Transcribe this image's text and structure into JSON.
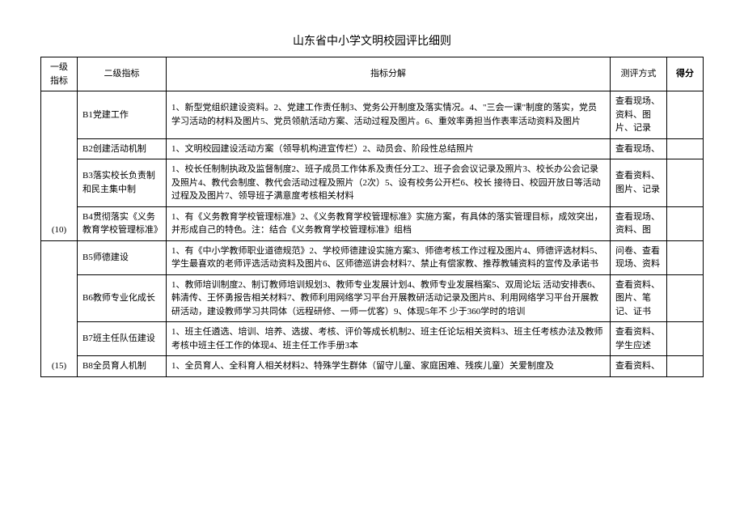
{
  "title": "山东省中小学文明校园评比细则",
  "headers": {
    "col1": "一级 指标",
    "col2": "二级指标",
    "col3": "指标分解",
    "col4": "测评方式",
    "col5": "得分"
  },
  "groups": [
    {
      "level1": "(10)",
      "rows": [
        {
          "b": "B1党建工作",
          "desc": "1、新型党组织建设资料。2、党建工作责任制3、党务公开制度及落实情况。4、\"三会一课\"制度的落实，党员学习活动的材料及图片5、党员领航活动方案、活动过程及图片。6、重效率勇担当作表率活动资料及图片",
          "method": "查看现场、资料、图片、记录"
        },
        {
          "b": "B2创建活动机制",
          "desc": "1、文明校园建设活动方案（领导机构进宣传栏）2、动员会、阶段性总结照片",
          "method": "查看现场、"
        },
        {
          "b": "B3落实校长负责制和民主集中制",
          "desc": "1、校长任制制执政及监督制度2、班子成员工作体系及责任分工2、班子会会议记录及照片3、校长办公会记录及照片4、教代会制度、教代会活动过程及照片（2次）5、设有校务公开栏6、校长 接待日、校园开放日等活动过程及及图片7、领导班子满意度考核相关材料",
          "method": "查看资料、图片、记录"
        },
        {
          "b": "B4贯彻落实《义务教育学校管理标准》",
          "desc": "1、有《义务教育学校管理标准》2、《义务教育学校管理标准》实施方案，有具体的落实管理目标，成效突出，并形成自己的特色。注：结合《义务教育学校管理标准》组档",
          "method": "查看现场、资料、图"
        }
      ]
    },
    {
      "level1": "(15)",
      "rows": [
        {
          "b": "B5师德建设",
          "desc": "1、有《中小学教师职业道德规范》2、学校师德建设实施方案3、师德考核工作过程及图片4、师德评选材料5、学生最喜欢的老师评选活动资料及图片6、区师德巡讲会材料7、禁止有偿家教、推荐教辅资料的宣传及承诺书",
          "method": "问卷、查看现场、资料"
        },
        {
          "b": "B6教师专业化成长",
          "desc": "1、教师培训制度2、制订教师培训规划3、教师专业发展计划4、教师专业发展档案5、双周论坛 活动安排表6、韩清传、王怀勇报告相关材料7、教师利用网络学习平台开展教研活动记录及图片8、利用网络学习平台开展教研活动，建设教师学习共同体（远程研修、一师一优客）9、体现5年不 少于360学时的培训",
          "method": "查看资料、图片、笔记、证书"
        },
        {
          "b": "B7班主任队伍建设",
          "desc": "1、班主任遴选、培训、培养、选拔、考核、评价等成长机制2、班主任论坛相关资料3、班主任考核办法及教师考核中班主任工作的体现4、班主任工作手册3本",
          "method": "查看资料、学生应述"
        },
        {
          "b": "B8全员育人机制",
          "desc": "1、全员育人、全科育人相关材料2、特殊学生群体（留守儿童、家庭困难、残疾儿童）关爱制度及",
          "method": "查看资料、"
        }
      ]
    }
  ]
}
